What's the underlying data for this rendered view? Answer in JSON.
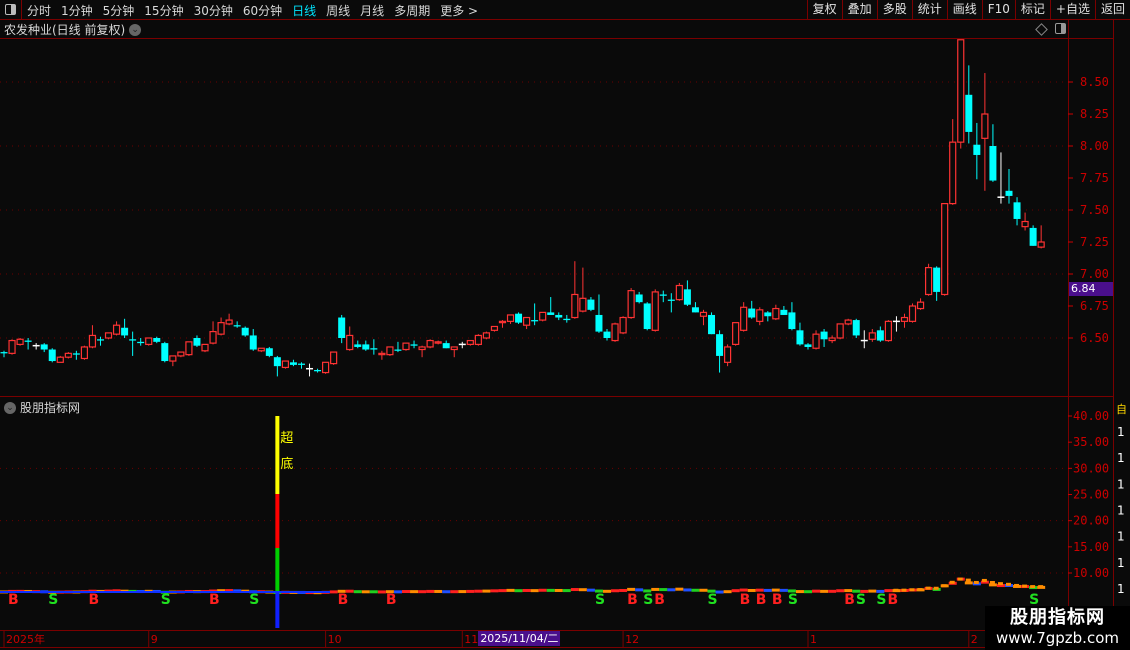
{
  "toolbar": {
    "periods": [
      "分时",
      "1分钟",
      "5分钟",
      "15分钟",
      "30分钟",
      "60分钟",
      "日线",
      "周线",
      "月线",
      "多周期",
      "更多 >"
    ],
    "active_period": "日线",
    "buttons": [
      "复权",
      "叠加",
      "多股",
      "统计",
      "画线",
      "F10",
      "标记",
      "+自选",
      "返回"
    ]
  },
  "main": {
    "title": "农发种业(日线 前复权)",
    "price_axis": [
      "8.50",
      "8.25",
      "8.00",
      "7.75",
      "7.50",
      "7.25",
      "7.00",
      "6.75",
      "6.50"
    ],
    "price_tag": "6.84",
    "colors": {
      "up": "#ff3333",
      "down": "#00ffff",
      "flat": "#ffffff",
      "axis": "#cc0000",
      "grid": "#6a0000"
    }
  },
  "indicator": {
    "title": "股朋指标网",
    "axis": [
      "40.00",
      "35.00",
      "30.00",
      "25.00",
      "20.00",
      "15.00",
      "10.00"
    ],
    "signal_label_1": "超",
    "signal_label_2": "底",
    "signal_bar_index": 34,
    "signals": [
      {
        "type": "B",
        "index": 1
      },
      {
        "type": "S",
        "index": 6
      },
      {
        "type": "B",
        "index": 11
      },
      {
        "type": "S",
        "index": 20
      },
      {
        "type": "B",
        "index": 26
      },
      {
        "type": "S",
        "index": 31
      },
      {
        "type": "B",
        "index": 42
      },
      {
        "type": "B",
        "index": 48
      },
      {
        "type": "S",
        "index": 74
      },
      {
        "type": "B",
        "index": 78
      },
      {
        "type": "S",
        "index": 80
      },
      {
        "type": "B",
        "index": 81
      },
      {
        "type": "S",
        "index": 88
      },
      {
        "type": "B",
        "index": 92
      },
      {
        "type": "B",
        "index": 94
      },
      {
        "type": "B",
        "index": 96
      },
      {
        "type": "S",
        "index": 98
      },
      {
        "type": "B",
        "index": 105
      },
      {
        "type": "S",
        "index": 106
      },
      {
        "type": "S",
        "index": 109
      },
      {
        "type": "B",
        "index": 110
      },
      {
        "type": "S",
        "index": 128
      }
    ],
    "side_top": "自",
    "side_digit": "1"
  },
  "time_axis": {
    "labels": [
      {
        "text": "2025年",
        "index": 0
      },
      {
        "text": "9",
        "index": 18
      },
      {
        "text": "10",
        "index": 40
      },
      {
        "text": "11",
        "index": 57
      },
      {
        "text": "12",
        "index": 77
      },
      {
        "text": "1",
        "index": 100
      },
      {
        "text": "2",
        "index": 120
      }
    ],
    "selected_date": "2025/11/04/二",
    "selected_index": 58
  },
  "watermark": {
    "name": "股朋指标网",
    "url": "www.7gpzb.com"
  },
  "chart_data": {
    "type": "candlestick",
    "fields": [
      "open",
      "high",
      "low",
      "close"
    ],
    "ylim": [
      6.15,
      8.85
    ],
    "candles": [
      [
        6.39,
        6.4,
        6.35,
        6.38
      ],
      [
        6.38,
        6.49,
        6.37,
        6.48
      ],
      [
        6.45,
        6.5,
        6.44,
        6.49
      ],
      [
        6.48,
        6.5,
        6.41,
        6.47
      ],
      [
        6.44,
        6.46,
        6.41,
        6.44
      ],
      [
        6.45,
        6.46,
        6.39,
        6.41
      ],
      [
        6.41,
        6.42,
        6.31,
        6.32
      ],
      [
        6.31,
        6.36,
        6.31,
        6.35
      ],
      [
        6.35,
        6.39,
        6.34,
        6.38
      ],
      [
        6.38,
        6.4,
        6.33,
        6.37
      ],
      [
        6.34,
        6.44,
        6.33,
        6.43
      ],
      [
        6.43,
        6.6,
        6.42,
        6.52
      ],
      [
        6.49,
        6.51,
        6.44,
        6.48
      ],
      [
        6.5,
        6.54,
        6.49,
        6.54
      ],
      [
        6.53,
        6.63,
        6.52,
        6.6
      ],
      [
        6.58,
        6.65,
        6.5,
        6.52
      ],
      [
        6.49,
        6.55,
        6.36,
        6.48
      ],
      [
        6.47,
        6.5,
        6.44,
        6.46
      ],
      [
        6.45,
        6.5,
        6.44,
        6.5
      ],
      [
        6.5,
        6.51,
        6.46,
        6.47
      ],
      [
        6.46,
        6.47,
        6.31,
        6.32
      ],
      [
        6.32,
        6.36,
        6.28,
        6.36
      ],
      [
        6.36,
        6.39,
        6.35,
        6.39
      ],
      [
        6.37,
        6.47,
        6.36,
        6.47
      ],
      [
        6.5,
        6.52,
        6.43,
        6.44
      ],
      [
        6.4,
        6.45,
        6.39,
        6.45
      ],
      [
        6.46,
        6.63,
        6.45,
        6.55
      ],
      [
        6.53,
        6.66,
        6.52,
        6.62
      ],
      [
        6.61,
        6.69,
        6.6,
        6.64
      ],
      [
        6.6,
        6.63,
        6.58,
        6.59
      ],
      [
        6.58,
        6.59,
        6.51,
        6.52
      ],
      [
        6.52,
        6.57,
        6.4,
        6.41
      ],
      [
        6.4,
        6.42,
        6.39,
        6.42
      ],
      [
        6.42,
        6.43,
        6.35,
        6.36
      ],
      [
        6.35,
        6.36,
        6.2,
        6.28
      ],
      [
        6.27,
        6.32,
        6.26,
        6.32
      ],
      [
        6.31,
        6.33,
        6.28,
        6.29
      ],
      [
        6.3,
        6.31,
        6.26,
        6.29
      ],
      [
        6.26,
        6.3,
        6.2,
        6.26
      ],
      [
        6.25,
        6.26,
        6.23,
        6.24
      ],
      [
        6.23,
        6.31,
        6.22,
        6.31
      ],
      [
        6.3,
        6.39,
        6.29,
        6.39
      ],
      [
        6.66,
        6.68,
        6.46,
        6.5
      ],
      [
        6.41,
        6.59,
        6.4,
        6.52
      ],
      [
        6.45,
        6.48,
        6.42,
        6.43
      ],
      [
        6.45,
        6.48,
        6.4,
        6.41
      ],
      [
        6.42,
        6.49,
        6.37,
        6.41
      ],
      [
        6.37,
        6.4,
        6.33,
        6.38
      ],
      [
        6.37,
        6.43,
        6.36,
        6.43
      ],
      [
        6.41,
        6.47,
        6.39,
        6.4
      ],
      [
        6.41,
        6.46,
        6.4,
        6.46
      ],
      [
        6.45,
        6.48,
        6.42,
        6.44
      ],
      [
        6.41,
        6.44,
        6.35,
        6.43
      ],
      [
        6.43,
        6.49,
        6.42,
        6.48
      ],
      [
        6.46,
        6.48,
        6.45,
        6.47
      ],
      [
        6.46,
        6.48,
        6.42,
        6.42
      ],
      [
        6.41,
        6.43,
        6.35,
        6.43
      ],
      [
        6.45,
        6.47,
        6.42,
        6.45
      ],
      [
        6.45,
        6.48,
        6.44,
        6.48
      ],
      [
        6.45,
        6.53,
        6.44,
        6.52
      ],
      [
        6.5,
        6.55,
        6.49,
        6.54
      ],
      [
        6.56,
        6.59,
        6.55,
        6.59
      ],
      [
        6.62,
        6.64,
        6.58,
        6.63
      ],
      [
        6.63,
        6.68,
        6.61,
        6.68
      ],
      [
        6.69,
        6.7,
        6.61,
        6.62
      ],
      [
        6.6,
        6.66,
        6.57,
        6.66
      ],
      [
        6.64,
        6.77,
        6.6,
        6.63
      ],
      [
        6.64,
        6.7,
        6.63,
        6.7
      ],
      [
        6.7,
        6.82,
        6.69,
        6.68
      ],
      [
        6.68,
        6.7,
        6.64,
        6.66
      ],
      [
        6.65,
        6.68,
        6.62,
        6.64
      ],
      [
        6.66,
        7.1,
        6.65,
        6.84
      ],
      [
        6.71,
        7.05,
        6.7,
        6.81
      ],
      [
        6.8,
        6.82,
        6.71,
        6.72
      ],
      [
        6.68,
        6.84,
        6.54,
        6.55
      ],
      [
        6.55,
        6.57,
        6.48,
        6.5
      ],
      [
        6.48,
        6.62,
        6.47,
        6.61
      ],
      [
        6.54,
        6.67,
        6.53,
        6.66
      ],
      [
        6.66,
        6.89,
        6.65,
        6.87
      ],
      [
        6.84,
        6.86,
        6.77,
        6.78
      ],
      [
        6.77,
        6.78,
        6.56,
        6.57
      ],
      [
        6.56,
        6.88,
        6.55,
        6.86
      ],
      [
        6.84,
        6.87,
        6.78,
        6.83
      ],
      [
        6.8,
        6.85,
        6.7,
        6.79
      ],
      [
        6.8,
        6.93,
        6.79,
        6.91
      ],
      [
        6.88,
        6.95,
        6.75,
        6.76
      ],
      [
        6.74,
        6.78,
        6.7,
        6.7
      ],
      [
        6.67,
        6.72,
        6.6,
        6.7
      ],
      [
        6.68,
        6.7,
        6.53,
        6.53
      ],
      [
        6.53,
        6.56,
        6.23,
        6.36
      ],
      [
        6.31,
        6.45,
        6.28,
        6.43
      ],
      [
        6.45,
        6.62,
        6.44,
        6.62
      ],
      [
        6.56,
        6.78,
        6.55,
        6.74
      ],
      [
        6.73,
        6.79,
        6.65,
        6.66
      ],
      [
        6.63,
        6.74,
        6.6,
        6.72
      ],
      [
        6.7,
        6.71,
        6.63,
        6.67
      ],
      [
        6.65,
        6.76,
        6.64,
        6.73
      ],
      [
        6.72,
        6.75,
        6.68,
        6.68
      ],
      [
        6.7,
        6.78,
        6.56,
        6.57
      ],
      [
        6.56,
        6.62,
        6.44,
        6.45
      ],
      [
        6.45,
        6.46,
        6.41,
        6.43
      ],
      [
        6.42,
        6.56,
        6.41,
        6.53
      ],
      [
        6.55,
        6.57,
        6.43,
        6.49
      ],
      [
        6.48,
        6.52,
        6.46,
        6.5
      ],
      [
        6.5,
        6.61,
        6.49,
        6.61
      ],
      [
        6.61,
        6.65,
        6.6,
        6.64
      ],
      [
        6.64,
        6.65,
        6.5,
        6.52
      ],
      [
        6.48,
        6.56,
        6.42,
        6.48
      ],
      [
        6.49,
        6.57,
        6.47,
        6.54
      ],
      [
        6.56,
        6.59,
        6.47,
        6.48
      ],
      [
        6.48,
        6.64,
        6.47,
        6.63
      ],
      [
        6.63,
        6.67,
        6.55,
        6.63
      ],
      [
        6.63,
        6.69,
        6.58,
        6.66
      ],
      [
        6.63,
        6.77,
        6.62,
        6.75
      ],
      [
        6.73,
        6.81,
        6.72,
        6.78
      ],
      [
        6.84,
        7.08,
        6.83,
        7.05
      ],
      [
        7.05,
        7.06,
        6.79,
        6.86
      ],
      [
        6.84,
        7.55,
        6.83,
        7.55
      ],
      [
        7.55,
        8.21,
        7.54,
        8.03
      ],
      [
        8.03,
        8.83,
        7.98,
        8.83
      ],
      [
        8.4,
        8.63,
        8.02,
        8.11
      ],
      [
        8.01,
        8.18,
        7.74,
        7.93
      ],
      [
        8.06,
        8.57,
        7.65,
        8.25
      ],
      [
        8.0,
        8.17,
        7.72,
        7.73
      ],
      [
        7.6,
        7.95,
        7.55,
        7.6
      ],
      [
        7.65,
        7.82,
        7.55,
        7.61
      ],
      [
        7.56,
        7.6,
        7.38,
        7.43
      ],
      [
        7.37,
        7.48,
        7.34,
        7.41
      ],
      [
        7.36,
        7.38,
        7.22,
        7.22
      ],
      [
        7.21,
        7.38,
        7.2,
        7.25
      ]
    ]
  }
}
